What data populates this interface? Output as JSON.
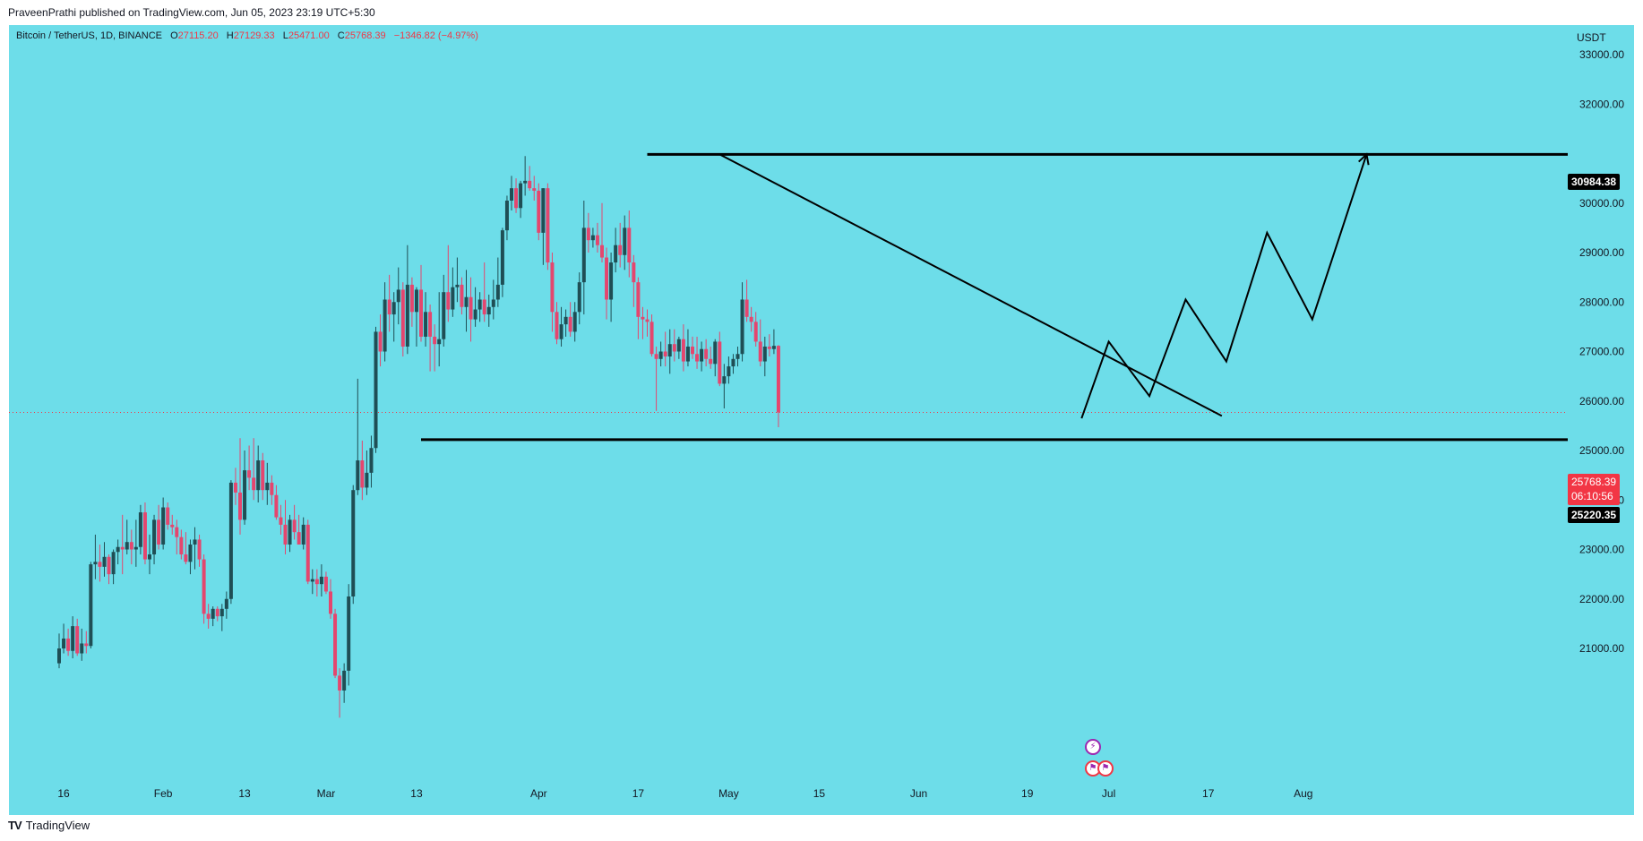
{
  "header": {
    "publisher": "PraveenPrathi published on TradingView.com, Jun 05, 2023 23:19 UTC+5:30"
  },
  "legend": {
    "symbol": "Bitcoin / TetherUS, 1D, BINANCE",
    "o_key": "O",
    "o": "27115.20",
    "h_key": "H",
    "h": "27129.33",
    "l_key": "L",
    "l": "25471.00",
    "c_key": "C",
    "c": "25768.39",
    "change": "−1346.82 (−4.97%)"
  },
  "price_axis": {
    "currency": "USDT",
    "labels": [
      "33000.00",
      "32000.00",
      "30000.00",
      "29000.00",
      "28000.00",
      "27000.00",
      "26000.00",
      "25000.00",
      "24000.00",
      "23000.00",
      "22000.00",
      "21000.00"
    ]
  },
  "tags": {
    "resistance": "30984.38",
    "last_price": "25768.39",
    "countdown": "06:10:56",
    "support": "25220.35"
  },
  "footer": {
    "brand": "TradingView",
    "logo": "TV"
  },
  "icons": [
    "tradingview-logo-icon",
    "lightning-event-icon",
    "us-flag-event-icon"
  ],
  "colors": {
    "background": "#6ddde9",
    "up_candle": "#1f4e55",
    "down_candle": "#e4466e",
    "drawing_line": "#000000",
    "last_price_tag": "#f23645"
  },
  "chart_data": {
    "type": "candlestick",
    "symbol": "Bitcoin / TetherUS",
    "interval": "1D",
    "exchange": "BINANCE",
    "ylim": [
      20500,
      33300
    ],
    "x_ticks": [
      "16",
      "Feb",
      "13",
      "Mar",
      "13",
      "Apr",
      "17",
      "May",
      "15",
      "Jun",
      "19",
      "Jul",
      "17",
      "Aug"
    ],
    "candles": [
      {
        "o": 20700,
        "h": 21300,
        "l": 20600,
        "c": 21000
      },
      {
        "o": 21000,
        "h": 21500,
        "l": 20900,
        "c": 21200
      },
      {
        "o": 21200,
        "h": 21400,
        "l": 20850,
        "c": 20950
      },
      {
        "o": 20950,
        "h": 21650,
        "l": 20800,
        "c": 21450
      },
      {
        "o": 21450,
        "h": 21600,
        "l": 20850,
        "c": 20900
      },
      {
        "o": 20900,
        "h": 21400,
        "l": 20750,
        "c": 21100
      },
      {
        "o": 21100,
        "h": 21350,
        "l": 20900,
        "c": 21050
      },
      {
        "o": 21050,
        "h": 22750,
        "l": 21000,
        "c": 22700
      },
      {
        "o": 22700,
        "h": 23300,
        "l": 22400,
        "c": 22750
      },
      {
        "o": 22750,
        "h": 23100,
        "l": 22350,
        "c": 22650
      },
      {
        "o": 22650,
        "h": 23150,
        "l": 22450,
        "c": 22850
      },
      {
        "o": 22850,
        "h": 22900,
        "l": 22300,
        "c": 22500
      },
      {
        "o": 22500,
        "h": 23000,
        "l": 22300,
        "c": 22950
      },
      {
        "o": 22950,
        "h": 23200,
        "l": 22700,
        "c": 23050
      },
      {
        "o": 23050,
        "h": 23700,
        "l": 22500,
        "c": 23000
      },
      {
        "o": 23000,
        "h": 23600,
        "l": 22900,
        "c": 23150
      },
      {
        "o": 23150,
        "h": 23400,
        "l": 22700,
        "c": 23000
      },
      {
        "o": 23000,
        "h": 23600,
        "l": 22650,
        "c": 23050
      },
      {
        "o": 23050,
        "h": 23900,
        "l": 22900,
        "c": 23750
      },
      {
        "o": 23750,
        "h": 23950,
        "l": 22700,
        "c": 22800
      },
      {
        "o": 22800,
        "h": 23300,
        "l": 22500,
        "c": 22900
      },
      {
        "o": 22900,
        "h": 23700,
        "l": 22700,
        "c": 23600
      },
      {
        "o": 23600,
        "h": 23900,
        "l": 23000,
        "c": 23100
      },
      {
        "o": 23100,
        "h": 24050,
        "l": 23000,
        "c": 23850
      },
      {
        "o": 23850,
        "h": 23950,
        "l": 23400,
        "c": 23500
      },
      {
        "o": 23500,
        "h": 23700,
        "l": 23300,
        "c": 23450
      },
      {
        "o": 23450,
        "h": 23600,
        "l": 22900,
        "c": 23250
      },
      {
        "o": 23250,
        "h": 23400,
        "l": 22800,
        "c": 22900
      },
      {
        "o": 22900,
        "h": 23350,
        "l": 22700,
        "c": 22750
      },
      {
        "o": 22750,
        "h": 23200,
        "l": 22500,
        "c": 23100
      },
      {
        "o": 23100,
        "h": 23450,
        "l": 22600,
        "c": 23200
      },
      {
        "o": 23200,
        "h": 23300,
        "l": 22650,
        "c": 22800
      },
      {
        "o": 22800,
        "h": 22900,
        "l": 21500,
        "c": 21700
      },
      {
        "o": 21700,
        "h": 21900,
        "l": 21400,
        "c": 21600
      },
      {
        "o": 21600,
        "h": 21850,
        "l": 21450,
        "c": 21800
      },
      {
        "o": 21800,
        "h": 21850,
        "l": 21550,
        "c": 21650
      },
      {
        "o": 21650,
        "h": 21900,
        "l": 21350,
        "c": 21800
      },
      {
        "o": 21800,
        "h": 22150,
        "l": 21600,
        "c": 22000
      },
      {
        "o": 22000,
        "h": 24400,
        "l": 21900,
        "c": 24350
      },
      {
        "o": 24350,
        "h": 24650,
        "l": 23900,
        "c": 24150
      },
      {
        "o": 24150,
        "h": 25250,
        "l": 23300,
        "c": 23600
      },
      {
        "o": 23600,
        "h": 25000,
        "l": 23500,
        "c": 24600
      },
      {
        "o": 24600,
        "h": 25100,
        "l": 24200,
        "c": 24450
      },
      {
        "o": 24450,
        "h": 25250,
        "l": 24000,
        "c": 24200
      },
      {
        "o": 24200,
        "h": 25100,
        "l": 23950,
        "c": 24800
      },
      {
        "o": 24800,
        "h": 24950,
        "l": 24000,
        "c": 24200
      },
      {
        "o": 24200,
        "h": 24750,
        "l": 23900,
        "c": 24350
      },
      {
        "o": 24350,
        "h": 24500,
        "l": 23900,
        "c": 24100
      },
      {
        "o": 24100,
        "h": 24300,
        "l": 23600,
        "c": 23650
      },
      {
        "o": 23650,
        "h": 23900,
        "l": 23300,
        "c": 23500
      },
      {
        "o": 23500,
        "h": 24000,
        "l": 22900,
        "c": 23100
      },
      {
        "o": 23100,
        "h": 23700,
        "l": 22950,
        "c": 23600
      },
      {
        "o": 23600,
        "h": 23900,
        "l": 23200,
        "c": 23350
      },
      {
        "o": 23350,
        "h": 23700,
        "l": 23100,
        "c": 23100
      },
      {
        "o": 23100,
        "h": 23650,
        "l": 23000,
        "c": 23500
      },
      {
        "o": 23500,
        "h": 23600,
        "l": 22300,
        "c": 22350
      },
      {
        "o": 22350,
        "h": 22600,
        "l": 22100,
        "c": 22400
      },
      {
        "o": 22400,
        "h": 22600,
        "l": 22050,
        "c": 22300
      },
      {
        "o": 22300,
        "h": 22700,
        "l": 22050,
        "c": 22450
      },
      {
        "o": 22450,
        "h": 22550,
        "l": 22100,
        "c": 22150
      },
      {
        "o": 22150,
        "h": 22400,
        "l": 21600,
        "c": 21700
      },
      {
        "o": 21700,
        "h": 21800,
        "l": 20400,
        "c": 20450
      },
      {
        "o": 20450,
        "h": 20600,
        "l": 19600,
        "c": 20150
      },
      {
        "o": 20150,
        "h": 20700,
        "l": 19900,
        "c": 20550
      },
      {
        "o": 20550,
        "h": 22300,
        "l": 20250,
        "c": 22050
      },
      {
        "o": 22050,
        "h": 24300,
        "l": 21900,
        "c": 24200
      },
      {
        "o": 24200,
        "h": 26450,
        "l": 24100,
        "c": 24800
      },
      {
        "o": 24800,
        "h": 25200,
        "l": 24000,
        "c": 24250
      },
      {
        "o": 24250,
        "h": 25000,
        "l": 24100,
        "c": 24550
      },
      {
        "o": 24550,
        "h": 25300,
        "l": 24250,
        "c": 25050
      },
      {
        "o": 25050,
        "h": 27500,
        "l": 24950,
        "c": 27400
      },
      {
        "o": 27400,
        "h": 27750,
        "l": 26700,
        "c": 27000
      },
      {
        "o": 27000,
        "h": 28400,
        "l": 26800,
        "c": 28050
      },
      {
        "o": 28050,
        "h": 28550,
        "l": 27400,
        "c": 27750
      },
      {
        "o": 27750,
        "h": 28200,
        "l": 27200,
        "c": 28000
      },
      {
        "o": 28000,
        "h": 28700,
        "l": 27550,
        "c": 28250
      },
      {
        "o": 28250,
        "h": 28400,
        "l": 26900,
        "c": 27100
      },
      {
        "o": 27100,
        "h": 29150,
        "l": 26950,
        "c": 28350
      },
      {
        "o": 28350,
        "h": 28500,
        "l": 27500,
        "c": 27800
      },
      {
        "o": 27800,
        "h": 28300,
        "l": 27100,
        "c": 28250
      },
      {
        "o": 28250,
        "h": 28750,
        "l": 27200,
        "c": 27300
      },
      {
        "o": 27300,
        "h": 28200,
        "l": 27100,
        "c": 27800
      },
      {
        "o": 27800,
        "h": 27950,
        "l": 26600,
        "c": 27300
      },
      {
        "o": 27300,
        "h": 27550,
        "l": 26600,
        "c": 27150
      },
      {
        "o": 27150,
        "h": 28200,
        "l": 26700,
        "c": 27250
      },
      {
        "o": 27250,
        "h": 28550,
        "l": 27100,
        "c": 28200
      },
      {
        "o": 28200,
        "h": 29150,
        "l": 27600,
        "c": 27850
      },
      {
        "o": 27850,
        "h": 28700,
        "l": 27700,
        "c": 28300
      },
      {
        "o": 28300,
        "h": 28900,
        "l": 28000,
        "c": 28350
      },
      {
        "o": 28350,
        "h": 28500,
        "l": 27750,
        "c": 27900
      },
      {
        "o": 27900,
        "h": 28650,
        "l": 27400,
        "c": 28100
      },
      {
        "o": 28100,
        "h": 28500,
        "l": 27200,
        "c": 27650
      },
      {
        "o": 27650,
        "h": 28300,
        "l": 27500,
        "c": 27850
      },
      {
        "o": 27850,
        "h": 28200,
        "l": 27600,
        "c": 28050
      },
      {
        "o": 28050,
        "h": 28800,
        "l": 27600,
        "c": 27750
      },
      {
        "o": 27750,
        "h": 28150,
        "l": 27500,
        "c": 27900
      },
      {
        "o": 27900,
        "h": 28450,
        "l": 27650,
        "c": 28050
      },
      {
        "o": 28050,
        "h": 28900,
        "l": 27900,
        "c": 28350
      },
      {
        "o": 28350,
        "h": 29500,
        "l": 28100,
        "c": 29450
      },
      {
        "o": 29450,
        "h": 30150,
        "l": 29250,
        "c": 30050
      },
      {
        "o": 30050,
        "h": 30550,
        "l": 29850,
        "c": 30300
      },
      {
        "o": 30300,
        "h": 30500,
        "l": 29800,
        "c": 29900
      },
      {
        "o": 29900,
        "h": 30450,
        "l": 29700,
        "c": 30400
      },
      {
        "o": 30400,
        "h": 30950,
        "l": 30150,
        "c": 30450
      },
      {
        "o": 30450,
        "h": 30750,
        "l": 30250,
        "c": 30300
      },
      {
        "o": 30300,
        "h": 30550,
        "l": 30050,
        "c": 30250
      },
      {
        "o": 30250,
        "h": 30400,
        "l": 29250,
        "c": 29400
      },
      {
        "o": 29400,
        "h": 30300,
        "l": 28750,
        "c": 30300
      },
      {
        "o": 30300,
        "h": 30400,
        "l": 28650,
        "c": 28800
      },
      {
        "o": 28800,
        "h": 29000,
        "l": 27400,
        "c": 27800
      },
      {
        "o": 27800,
        "h": 28000,
        "l": 27150,
        "c": 27250
      },
      {
        "o": 27250,
        "h": 27900,
        "l": 27100,
        "c": 27550
      },
      {
        "o": 27550,
        "h": 27850,
        "l": 27300,
        "c": 27700
      },
      {
        "o": 27700,
        "h": 28000,
        "l": 27300,
        "c": 27400
      },
      {
        "o": 27400,
        "h": 28000,
        "l": 27200,
        "c": 27800
      },
      {
        "o": 27800,
        "h": 28600,
        "l": 27550,
        "c": 28400
      },
      {
        "o": 28400,
        "h": 30050,
        "l": 27750,
        "c": 29500
      },
      {
        "o": 29500,
        "h": 29800,
        "l": 29000,
        "c": 29250
      },
      {
        "o": 29250,
        "h": 29500,
        "l": 29100,
        "c": 29350
      },
      {
        "o": 29350,
        "h": 29600,
        "l": 29000,
        "c": 29150
      },
      {
        "o": 29150,
        "h": 30000,
        "l": 28800,
        "c": 28900
      },
      {
        "o": 28900,
        "h": 29100,
        "l": 27650,
        "c": 28050
      },
      {
        "o": 28050,
        "h": 29000,
        "l": 27600,
        "c": 28800
      },
      {
        "o": 28800,
        "h": 29500,
        "l": 28600,
        "c": 29150
      },
      {
        "o": 29150,
        "h": 29600,
        "l": 28700,
        "c": 28950
      },
      {
        "o": 28950,
        "h": 29750,
        "l": 28650,
        "c": 29500
      },
      {
        "o": 29500,
        "h": 29850,
        "l": 28500,
        "c": 28800
      },
      {
        "o": 28800,
        "h": 28950,
        "l": 27900,
        "c": 28400
      },
      {
        "o": 28400,
        "h": 28500,
        "l": 27250,
        "c": 27700
      },
      {
        "o": 27700,
        "h": 27900,
        "l": 27250,
        "c": 27650
      },
      {
        "o": 27650,
        "h": 27850,
        "l": 27300,
        "c": 27600
      },
      {
        "o": 27600,
        "h": 27750,
        "l": 26900,
        "c": 26950
      },
      {
        "o": 26950,
        "h": 27100,
        "l": 25800,
        "c": 26850
      },
      {
        "o": 26850,
        "h": 27200,
        "l": 26700,
        "c": 27000
      },
      {
        "o": 27000,
        "h": 27400,
        "l": 26700,
        "c": 26900
      },
      {
        "o": 26900,
        "h": 27450,
        "l": 26550,
        "c": 27150
      },
      {
        "o": 27150,
        "h": 27450,
        "l": 26800,
        "c": 27000
      },
      {
        "o": 27000,
        "h": 27300,
        "l": 26850,
        "c": 27250
      },
      {
        "o": 27250,
        "h": 27550,
        "l": 26600,
        "c": 26800
      },
      {
        "o": 26800,
        "h": 27450,
        "l": 26700,
        "c": 27100
      },
      {
        "o": 27100,
        "h": 27300,
        "l": 26850,
        "c": 26950
      },
      {
        "o": 26950,
        "h": 27300,
        "l": 26650,
        "c": 26800
      },
      {
        "o": 26800,
        "h": 27200,
        "l": 26600,
        "c": 27050
      },
      {
        "o": 27050,
        "h": 27250,
        "l": 26700,
        "c": 26850
      },
      {
        "o": 26850,
        "h": 27100,
        "l": 26650,
        "c": 26750
      },
      {
        "o": 26750,
        "h": 27250,
        "l": 26500,
        "c": 27200
      },
      {
        "o": 27200,
        "h": 27400,
        "l": 26300,
        "c": 26350
      },
      {
        "o": 26350,
        "h": 26750,
        "l": 25850,
        "c": 26500
      },
      {
        "o": 26500,
        "h": 26900,
        "l": 26350,
        "c": 26700
      },
      {
        "o": 26700,
        "h": 26950,
        "l": 26550,
        "c": 26850
      },
      {
        "o": 26850,
        "h": 27100,
        "l": 26700,
        "c": 26950
      },
      {
        "o": 26950,
        "h": 28400,
        "l": 26800,
        "c": 28050
      },
      {
        "o": 28050,
        "h": 28450,
        "l": 27600,
        "c": 27700
      },
      {
        "o": 27700,
        "h": 27900,
        "l": 27400,
        "c": 27600
      },
      {
        "o": 27600,
        "h": 27800,
        "l": 27100,
        "c": 27200
      },
      {
        "o": 27200,
        "h": 27650,
        "l": 26700,
        "c": 26800
      },
      {
        "o": 26800,
        "h": 27300,
        "l": 26500,
        "c": 27100
      },
      {
        "o": 27100,
        "h": 27350,
        "l": 26900,
        "c": 27050
      },
      {
        "o": 27050,
        "h": 27450,
        "l": 26950,
        "c": 27115
      },
      {
        "o": 27115.2,
        "h": 27129.33,
        "l": 25471.0,
        "c": 25768.39
      }
    ],
    "horizontal_lines": [
      {
        "label": "resistance",
        "price": 30984.38,
        "from_index": 130
      },
      {
        "label": "support",
        "price": 25220.35,
        "from_index": 80
      }
    ],
    "trendline": [
      {
        "i": 146,
        "p": 30984.38
      },
      {
        "i": 257,
        "p": 25700
      }
    ],
    "projection_path": [
      {
        "i": 226,
        "p": 25650
      },
      {
        "i": 232,
        "p": 27200
      },
      {
        "i": 241,
        "p": 26100
      },
      {
        "i": 249,
        "p": 28050
      },
      {
        "i": 258,
        "p": 26800
      },
      {
        "i": 267,
        "p": 29400
      },
      {
        "i": 277,
        "p": 27650
      },
      {
        "i": 289,
        "p": 30984.38
      }
    ],
    "grid": false,
    "last_price": 25768.39
  }
}
